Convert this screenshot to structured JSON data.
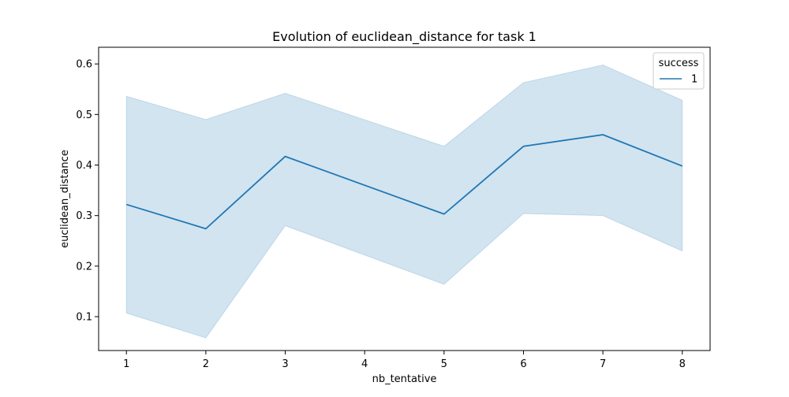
{
  "chart_data": {
    "type": "line",
    "title": "Evolution of euclidean_distance for task 1",
    "xlabel": "nb_tentative",
    "ylabel": "euclidean_distance",
    "x": [
      1,
      2,
      3,
      5,
      6,
      7,
      8
    ],
    "xticks": [
      1,
      2,
      3,
      4,
      5,
      6,
      7,
      8
    ],
    "yticks": [
      0.1,
      0.2,
      0.3,
      0.4,
      0.5,
      0.6
    ],
    "xlim": [
      0.65,
      8.35
    ],
    "ylim": [
      0.033,
      0.633
    ],
    "grid": false,
    "legend": {
      "title": "success",
      "placement": "top-right"
    },
    "series": [
      {
        "name": "1",
        "color": "#1f77b4",
        "values": [
          0.322,
          0.274,
          0.417,
          0.303,
          0.437,
          0.46,
          0.398
        ],
        "ci_lower": [
          0.107,
          0.058,
          0.28,
          0.164,
          0.304,
          0.3,
          0.23
        ],
        "ci_upper": [
          0.536,
          0.49,
          0.542,
          0.437,
          0.563,
          0.598,
          0.528
        ]
      }
    ]
  }
}
